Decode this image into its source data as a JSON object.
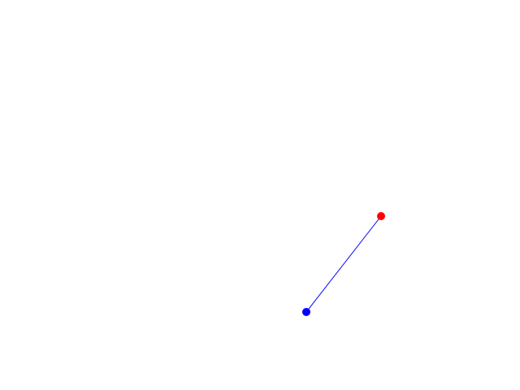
{
  "scene": {
    "background_color": "#ffffff",
    "link_color": "#0000ff",
    "base_point_color": "#0000ff",
    "target_point_color": "#ff0000"
  }
}
